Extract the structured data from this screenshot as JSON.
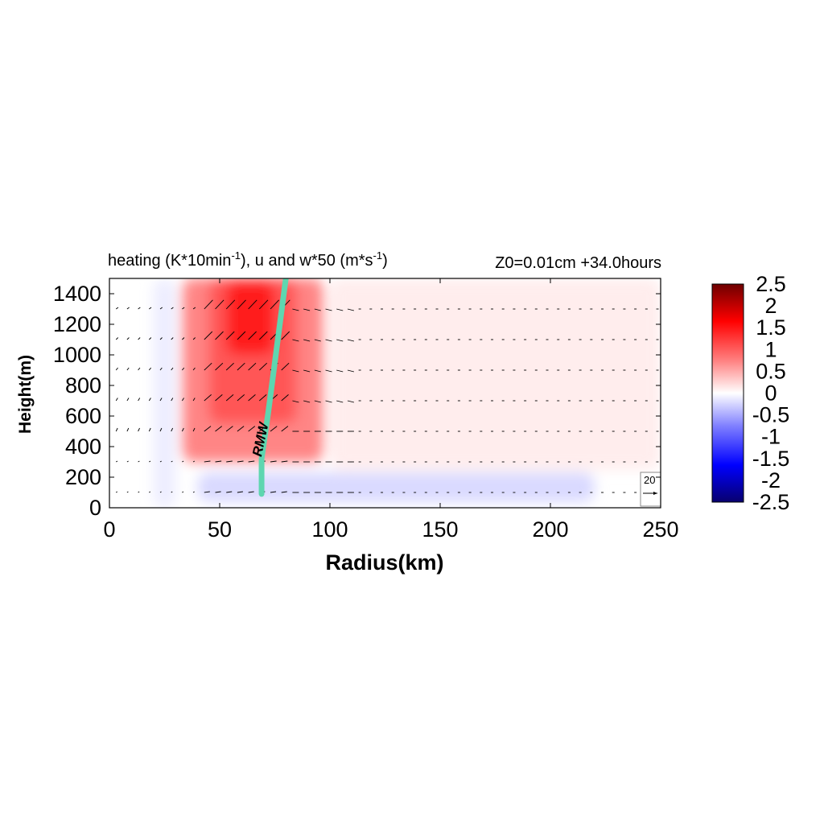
{
  "chart_data": {
    "type": "heatmap",
    "title_left": "heating (K*10min",
    "title_left_sup1": "-1",
    "title_left_mid": "), u and w*50 (m*s",
    "title_left_sup2": "-1",
    "title_left_end": ")",
    "title_right": "Z0=0.01cm  +34.0hours",
    "xlabel": "Radius(km)",
    "ylabel": "Height(m)",
    "xlim": [
      0,
      250
    ],
    "ylim": [
      0,
      1500
    ],
    "x_ticks": [
      "0",
      "50",
      "100",
      "150",
      "200",
      "250"
    ],
    "y_ticks": [
      "0",
      "200",
      "400",
      "600",
      "800",
      "1000",
      "1200",
      "1400"
    ],
    "colorbar": {
      "range": [
        -2.5,
        2.5
      ],
      "tick_labels": [
        "2.5",
        "2",
        "1.5",
        "1",
        "0.5",
        "0",
        "-0.5",
        "-1",
        "-1.5",
        "-2",
        "-2.5"
      ],
      "colors": [
        "#08006e",
        "#0000ff",
        "#8080ff",
        "#ffffff",
        "#ff8080",
        "#ff0000",
        "#6e0000"
      ]
    },
    "heating_field": [
      {
        "r": [
          33,
          97
        ],
        "z": [
          300,
          1500
        ],
        "value": 0.8
      },
      {
        "r": [
          45,
          85
        ],
        "z": [
          550,
          1500
        ],
        "value": 1.1
      },
      {
        "r": [
          53,
          75
        ],
        "z": [
          1000,
          1480
        ],
        "value": 1.5
      },
      {
        "r": [
          20,
          30
        ],
        "z": [
          0,
          1500
        ],
        "value": -0.12
      },
      {
        "r": [
          40,
          220
        ],
        "z": [
          40,
          230
        ],
        "value": -0.25
      },
      {
        "r": [
          100,
          250
        ],
        "z": [
          250,
          1500
        ],
        "value": 0.12
      }
    ],
    "rmw": {
      "label": "RMW",
      "color": "#5ed6b0",
      "points": [
        [
          69,
          90
        ],
        [
          69,
          320
        ],
        [
          72,
          620
        ],
        [
          80,
          1500
        ]
      ]
    },
    "vector_levels_m": [
      100,
      300,
      500,
      700,
      900,
      1100,
      1300
    ],
    "vector_reference": {
      "label": "20",
      "value": 20
    }
  }
}
